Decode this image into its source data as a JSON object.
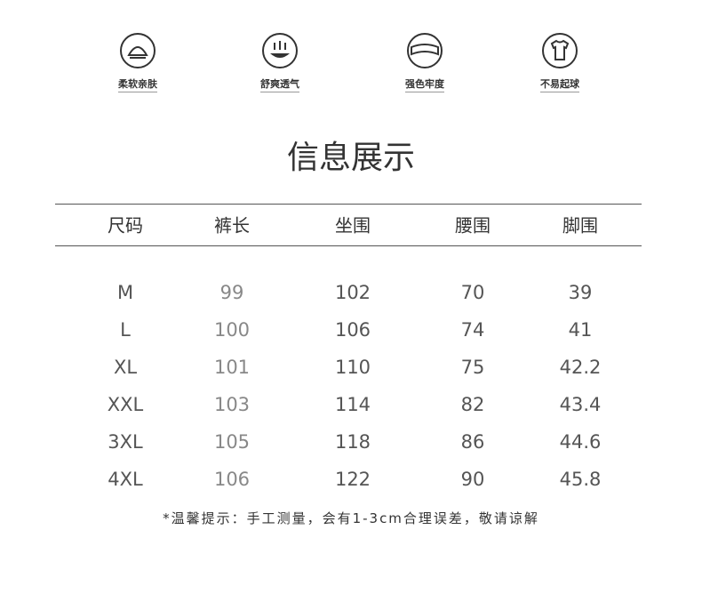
{
  "features": [
    "柔软亲肤",
    "舒爽透气",
    "强色牢度",
    "不易起球"
  ],
  "title": "信息展示",
  "table": {
    "header": [
      "尺码",
      "裤长",
      "坐围",
      "腰围",
      "脚围"
    ],
    "rows": [
      [
        "M",
        "99",
        "102",
        "70",
        "39"
      ],
      [
        "L",
        "100",
        "106",
        "74",
        "41"
      ],
      [
        "XL",
        "101",
        "110",
        "75",
        "42.2"
      ],
      [
        "XXL",
        "103",
        "114",
        "82",
        "43.4"
      ],
      [
        "3XL",
        "105",
        "118",
        "86",
        "44.6"
      ],
      [
        "4XL",
        "106",
        "122",
        "90",
        "45.8"
      ]
    ]
  },
  "note": "*温馨提示：手工测量，会有1-3cm合理误差，敬请谅解"
}
